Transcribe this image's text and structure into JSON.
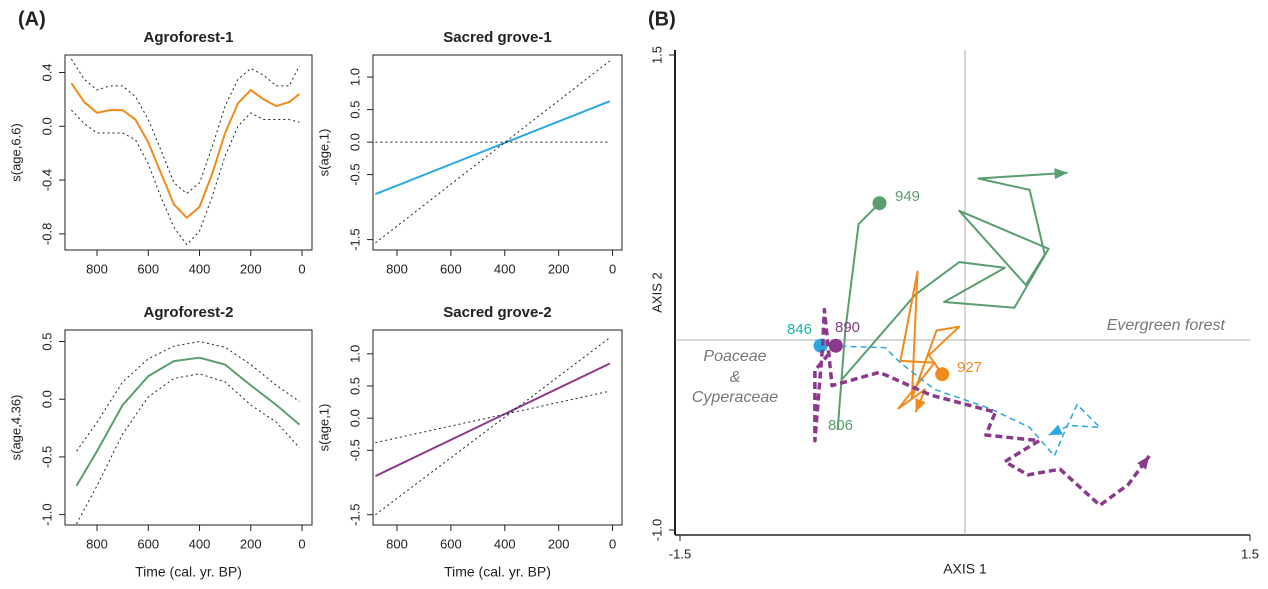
{
  "labels": {
    "a": "(A)",
    "b": "(B)"
  },
  "chart_data": [
    {
      "type": "line",
      "title": "Agroforest-1",
      "ylabel": "s(age,6.6)",
      "x": [
        900,
        850,
        800,
        750,
        700,
        650,
        600,
        550,
        500,
        450,
        400,
        350,
        300,
        250,
        200,
        150,
        100,
        50,
        10
      ],
      "series": [
        {
          "color": "#f08a1c",
          "style": "solid",
          "values": [
            0.32,
            0.18,
            0.1,
            0.12,
            0.12,
            0.05,
            -0.12,
            -0.35,
            -0.58,
            -0.68,
            -0.6,
            -0.35,
            -0.05,
            0.17,
            0.27,
            0.2,
            0.15,
            0.18,
            0.24
          ]
        },
        {
          "color": "#222222",
          "style": "dotted",
          "values": [
            0.5,
            0.35,
            0.27,
            0.3,
            0.3,
            0.22,
            0.05,
            -0.18,
            -0.42,
            -0.5,
            -0.42,
            -0.15,
            0.15,
            0.35,
            0.43,
            0.38,
            0.3,
            0.3,
            0.45
          ]
        },
        {
          "color": "#222222",
          "style": "dotted",
          "values": [
            0.12,
            0.02,
            -0.05,
            -0.05,
            -0.05,
            -0.1,
            -0.28,
            -0.53,
            -0.75,
            -0.88,
            -0.78,
            -0.52,
            -0.22,
            0.0,
            0.1,
            0.05,
            0.05,
            0.05,
            0.03
          ]
        }
      ],
      "xlim": [
        925,
        -39
      ],
      "xticks": [
        800,
        600,
        400,
        200,
        0
      ],
      "ylim": [
        -0.92,
        0.53
      ],
      "yticks": [
        0.4,
        {
          "value": 0,
          "label": "0.0"
        },
        -0.4,
        -0.8
      ]
    },
    {
      "type": "line",
      "title": "Sacred grove-1",
      "ylabel": "s(age,1)",
      "x": [
        880,
        10
      ],
      "series": [
        {
          "color": "#2aa8e0",
          "style": "solid",
          "values": [
            -0.8,
            0.63
          ]
        },
        {
          "color": "#222222",
          "style": "dotted",
          "values": [
            -1.55,
            1.25
          ]
        },
        {
          "color": "#222222",
          "style": "dotted",
          "values": [
            0,
            0
          ]
        }
      ],
      "xlim": [
        889,
        -35
      ],
      "xticks": [
        800,
        600,
        400,
        200,
        0
      ],
      "ylim": [
        -1.66,
        1.34
      ],
      "yticks": [
        {
          "value": 1,
          "label": "1.0"
        },
        0.5,
        {
          "value": 0,
          "label": "0.0"
        },
        -0.5,
        -1.5
      ]
    },
    {
      "type": "line",
      "title": "Agroforest-2",
      "ylabel": "s(age,4.36)",
      "xlabel": "Time (cal. yr. BP)",
      "x": [
        880,
        800,
        700,
        600,
        500,
        400,
        300,
        200,
        100,
        10
      ],
      "series": [
        {
          "color": "#5a9e6f",
          "style": "solid",
          "values": [
            -0.75,
            -0.45,
            -0.05,
            0.2,
            0.33,
            0.36,
            0.3,
            0.12,
            -0.05,
            -0.22
          ]
        },
        {
          "color": "#222222",
          "style": "dotted",
          "values": [
            -0.45,
            -0.2,
            0.15,
            0.35,
            0.46,
            0.5,
            0.45,
            0.3,
            0.12,
            -0.02
          ]
        },
        {
          "color": "#222222",
          "style": "dotted",
          "values": [
            -1.08,
            -0.75,
            -0.3,
            0.02,
            0.18,
            0.22,
            0.15,
            -0.05,
            -0.2,
            -0.42
          ]
        }
      ],
      "xlim": [
        925,
        -39
      ],
      "xticks": [
        800,
        600,
        400,
        200,
        0
      ],
      "ylim": [
        -1.09,
        0.6
      ],
      "yticks": [
        0.5,
        {
          "value": 0,
          "label": "0.0"
        },
        -0.5,
        {
          "value": -1,
          "label": "-1.0"
        }
      ]
    },
    {
      "type": "line",
      "title": "Sacred grove-2",
      "ylabel": "s(age,1)",
      "xlabel": "Time (cal. yr. BP)",
      "x": [
        880,
        10
      ],
      "series": [
        {
          "color": "#8b3a8b",
          "style": "solid",
          "values": [
            -0.9,
            0.85
          ]
        },
        {
          "color": "#222222",
          "style": "dotted",
          "values": [
            -0.38,
            0.42
          ]
        },
        {
          "color": "#222222",
          "style": "dotted",
          "values": [
            -1.5,
            1.25
          ]
        }
      ],
      "xlim": [
        889,
        -35
      ],
      "xticks": [
        800,
        600,
        400,
        200,
        0
      ],
      "ylim": [
        -1.66,
        1.37
      ],
      "yticks": [
        {
          "value": 1,
          "label": "1.0"
        },
        0.5,
        {
          "value": 0,
          "label": "0.0"
        },
        -0.5,
        -1.5
      ]
    },
    {
      "type": "trajectory",
      "xlabel": "AXIS 1",
      "ylabel": "AXIS 2",
      "crosshair": true,
      "series": [
        {
          "color": "#5a9e6f",
          "style": "solid",
          "x": [
            -0.45,
            -0.56,
            -0.63,
            -0.67,
            -0.65,
            -0.26,
            -0.03,
            0.21,
            -0.11,
            0.26,
            0.44,
            -0.03,
            0.32,
            0.42,
            0.34,
            0.07,
            0.54
          ],
          "values": [
            0.72,
            0.61,
            0.05,
            -0.47,
            -0.21,
            0.24,
            0.41,
            0.38,
            0.2,
            0.17,
            0.48,
            0.68,
            0.29,
            0.45,
            0.79,
            0.85,
            0.88
          ]
        },
        {
          "color": "#f08a1c",
          "style": "solid",
          "x": [
            -0.12,
            -0.19,
            -0.03,
            -0.15,
            -0.28,
            -0.25,
            -0.34,
            -0.16,
            -0.35,
            -0.21,
            -0.26
          ],
          "values": [
            -0.18,
            -0.08,
            0.07,
            0.05,
            -0.31,
            0.36,
            -0.11,
            -0.12,
            -0.36,
            -0.26,
            -0.38
          ]
        },
        {
          "color": "#2aa8e0",
          "style": "dashed",
          "x": [
            -0.76,
            -0.42,
            -0.34,
            -0.16,
            0.13,
            0.34,
            0.47,
            0.53,
            0.59,
            0.71,
            0.55,
            0.44
          ],
          "values": [
            -0.03,
            -0.04,
            -0.12,
            -0.26,
            -0.36,
            -0.46,
            -0.61,
            -0.47,
            -0.34,
            -0.46,
            -0.45,
            -0.5
          ]
        },
        {
          "color": "#8b3a8b",
          "style": "thickdash",
          "x": [
            -0.68,
            -0.79,
            -0.79,
            -0.75,
            -0.74,
            -0.7,
            -0.45,
            -0.18,
            0.16,
            0.11,
            0.39,
            0.21,
            0.33,
            0.5,
            0.71,
            0.86,
            0.97
          ],
          "values": [
            -0.03,
            -0.16,
            -0.53,
            -0.04,
            0.16,
            -0.24,
            -0.17,
            -0.29,
            -0.38,
            -0.5,
            -0.53,
            -0.64,
            -0.71,
            -0.68,
            -0.87,
            -0.76,
            -0.61
          ]
        }
      ],
      "annotations": [
        {
          "text": "949",
          "color": "#5a9e6f"
        },
        {
          "text": "927",
          "color": "#f08a1c"
        },
        {
          "text": "846",
          "color": "#1fb0b0"
        },
        {
          "text": "890",
          "color": "#8b3a8b"
        },
        {
          "text": "806",
          "color": "#5a9e6f"
        },
        {
          "text": "Evergreen forest",
          "color": "#777777"
        },
        {
          "text": "Poaceae",
          "color": "#777777"
        },
        {
          "text": "&",
          "color": "#777777"
        },
        {
          "text": "Cyperaceae",
          "color": "#777777"
        }
      ],
      "xlim": [
        -1.5,
        1.5
      ],
      "xticks": [
        -1.5,
        1.5
      ],
      "ylim": [
        -1,
        1.5
      ],
      "yticks": [
        {
          "value": -1,
          "label": "-1.0"
        },
        1.5
      ]
    }
  ]
}
